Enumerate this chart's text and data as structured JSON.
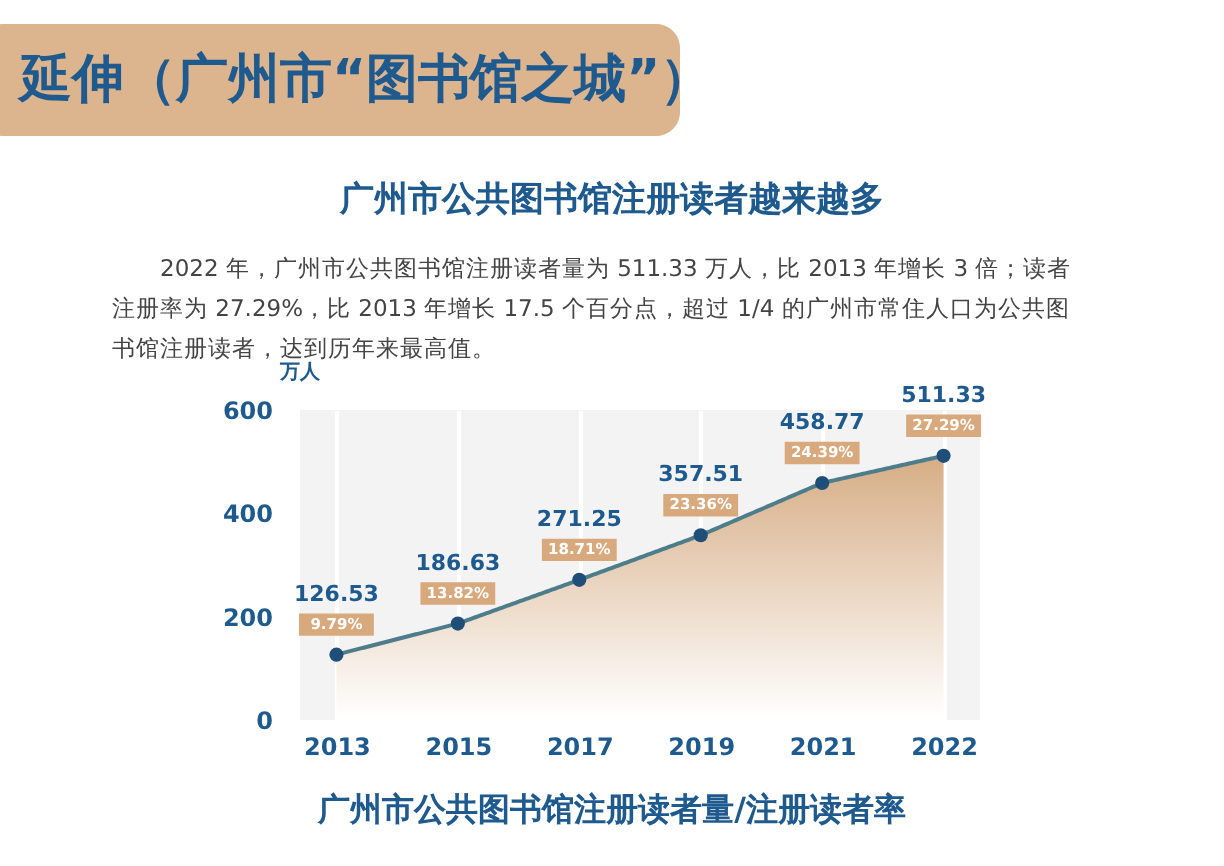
{
  "chart_data": {
    "type": "area",
    "title": "延伸（广州市“图书馆之城”）",
    "subtitle": "广州市公共图书馆注册读者越来越多",
    "ylabel": "万人",
    "categories": [
      "2013",
      "2015",
      "2017",
      "2019",
      "2021",
      "2022"
    ],
    "series": [
      {
        "color": "#d6ad85",
        "values": [
          126.53,
          186.63,
          271.25,
          357.51,
          458.77,
          511.33
        ]
      }
    ],
    "ylim": [
      0,
      600
    ],
    "yticks": [
      0,
      200,
      400,
      600
    ],
    "grid": "x",
    "marker": "circle",
    "data_labels": true,
    "annotations": [
      "2022 年，广州市公共图书馆注册读者量为 511.33 万人，比 2013 年增长 3 倍；读者注册率为 27.29%，比 2013 年增长 17.5 个百分点，超过 1/4 的广州市常住人口为公共图书馆注册读者，达到历年来最高值。",
      "广州市公共图书馆注册读者量/注册读者率",
      {
        "text": "9.79%",
        "x": "2013",
        "y": 126.53
      },
      {
        "text": "13.82%",
        "x": "2015",
        "y": 186.63
      },
      {
        "text": "18.71%",
        "x": "2017",
        "y": 271.25
      },
      {
        "text": "23.36%",
        "x": "2019",
        "y": 357.51
      },
      {
        "text": "24.39%",
        "x": "2021",
        "y": 458.77
      },
      {
        "text": "27.29%",
        "x": "2022",
        "y": 511.33
      }
    ]
  }
}
